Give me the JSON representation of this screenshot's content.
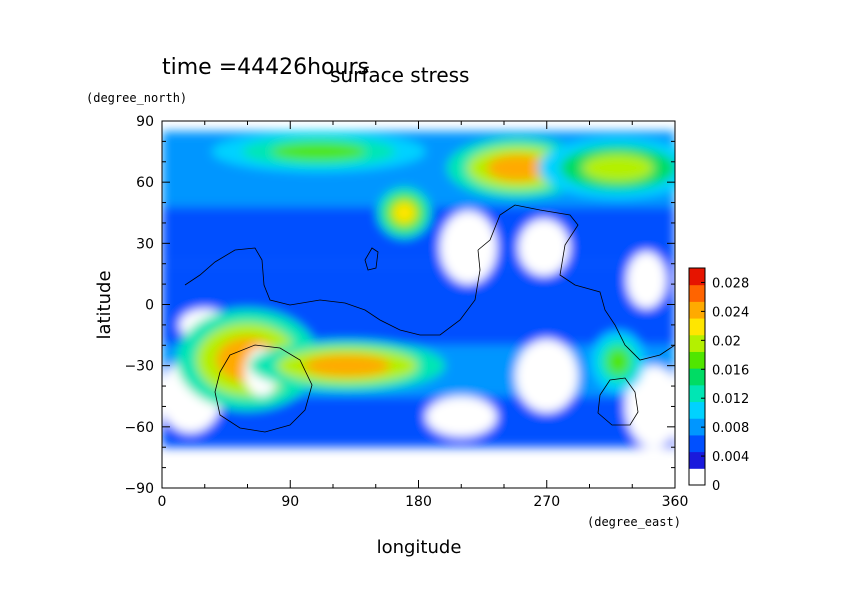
{
  "chart_data": {
    "type": "heatmap",
    "time_label": "time =44426hours",
    "title": "surface stress",
    "xlabel": "longitude",
    "ylabel": "latitude",
    "xunit": "(degree_east)",
    "yunit": "(degree_north)",
    "xlim": [
      0,
      360
    ],
    "ylim": [
      -90,
      90
    ],
    "xticks": [
      "0",
      "90",
      "180",
      "270",
      "360"
    ],
    "yticks": [
      "90",
      "60",
      "30",
      "0",
      "−30",
      "−60",
      "−90"
    ],
    "x_values": [
      0,
      90,
      180,
      270,
      360
    ],
    "y_values": [
      90,
      60,
      30,
      0,
      -30,
      -60,
      -90
    ],
    "colorbar": {
      "labels": [
        "0.028",
        "0.024",
        "0.02",
        "0.016",
        "0.012",
        "0.008",
        "0.004",
        "0"
      ],
      "values": [
        0.028,
        0.024,
        0.02,
        0.016,
        0.012,
        0.008,
        0.004,
        0
      ],
      "range": [
        0,
        0.03
      ],
      "colors": [
        "#ffffff",
        "#1a1adc",
        "#0050ff",
        "#0096ff",
        "#00d2ff",
        "#00e6b4",
        "#00dc64",
        "#50e600",
        "#b4f000",
        "#ffe600",
        "#ffaa00",
        "#ff6400",
        "#e61400"
      ]
    },
    "field_blobs": [
      {
        "lon": 60,
        "lat": -27,
        "rlon": 40,
        "rlat": 20,
        "v": 0.024
      },
      {
        "lon": 70,
        "lat": -33,
        "rlon": 12,
        "rlat": 12,
        "v": 0.0
      },
      {
        "lon": 130,
        "lat": -30,
        "rlon": 55,
        "rlat": 10,
        "v": 0.024
      },
      {
        "lon": 250,
        "lat": 67,
        "rlon": 40,
        "rlat": 12,
        "v": 0.024
      },
      {
        "lon": 170,
        "lat": 45,
        "rlon": 15,
        "rlat": 10,
        "v": 0.02
      },
      {
        "lon": 320,
        "lat": 67,
        "rlon": 45,
        "rlat": 12,
        "v": 0.018
      },
      {
        "lon": 110,
        "lat": 75,
        "rlon": 60,
        "rlat": 8,
        "v": 0.016
      },
      {
        "lon": 320,
        "lat": -28,
        "rlon": 15,
        "rlat": 12,
        "v": 0.016
      }
    ]
  }
}
